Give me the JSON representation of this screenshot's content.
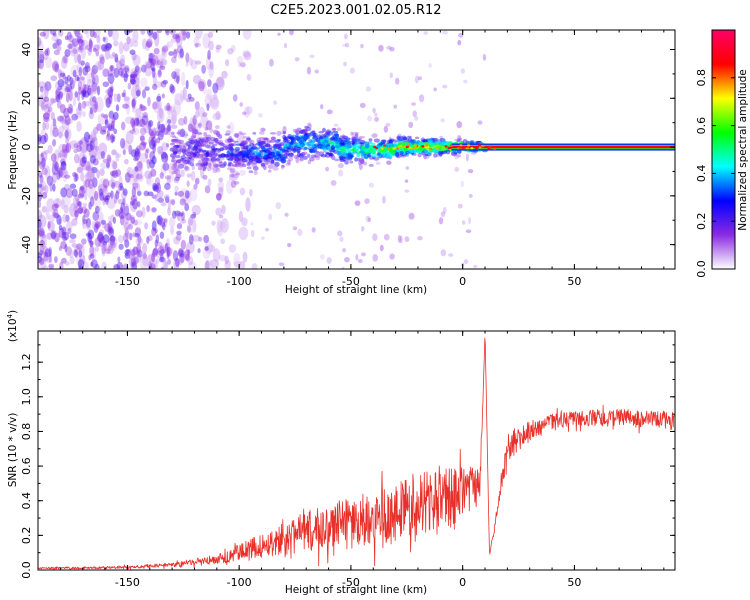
{
  "title": "C2E5.2023.001.02.05.R12",
  "chart_data": [
    {
      "type": "heatmap",
      "name": "spectrogram",
      "xlabel": "Height of straight line (km)",
      "ylabel": "Frequency (Hz)",
      "xlim": [
        -190,
        95
      ],
      "ylim": [
        -50,
        48
      ],
      "xticks": [
        -150,
        -100,
        -50,
        0,
        50
      ],
      "yticks": [
        -40,
        -20,
        0,
        20,
        40
      ],
      "description_regions": {
        "noise_region_x": [
          -190,
          -105
        ],
        "broadened_signal_x": [
          -130,
          10
        ],
        "narrow_line_x": [
          -5,
          95
        ],
        "line_frequency": 0
      },
      "colorbar": {
        "label": "Normalized spectral amplitude",
        "range": [
          0.0,
          1.0
        ],
        "ticks": [
          "0.0",
          "0.2",
          "0.4",
          "0.6",
          "0.8"
        ],
        "colors": [
          "#ffffff",
          "#8a2be2",
          "#0000ff",
          "#00ffff",
          "#00ff00",
          "#ffff00",
          "#ff0000",
          "#ff0066"
        ]
      }
    },
    {
      "type": "line",
      "name": "snr",
      "xlabel": "Height of straight line (km)",
      "ylabel": "SNR (10 * v/v)",
      "yscale_label": "(x10",
      "yscale_exp": "4",
      "yscale_close": ")",
      "xlim": [
        -190,
        95
      ],
      "ylim": [
        0,
        1.38
      ],
      "xticks": [
        -150,
        -100,
        -50,
        0,
        50
      ],
      "yticks": [
        0.0,
        0.2,
        0.4,
        0.6,
        0.8,
        1.0,
        1.2
      ],
      "ytick_labels": [
        "0.0",
        "0.2",
        "0.4",
        "0.6",
        "0.8",
        "1.0",
        "1.2"
      ],
      "color": "#e8302a",
      "envelope": {
        "x": [
          -190,
          -150,
          -130,
          -110,
          -100,
          -90,
          -80,
          -70,
          -60,
          -50,
          -40,
          -30,
          -20,
          -10,
          0,
          8,
          10,
          12,
          20,
          30,
          40,
          50,
          60,
          70,
          80,
          95
        ],
        "y": [
          0.01,
          0.015,
          0.03,
          0.06,
          0.1,
          0.14,
          0.18,
          0.22,
          0.25,
          0.27,
          0.3,
          0.35,
          0.38,
          0.4,
          0.45,
          0.5,
          1.38,
          0.08,
          0.7,
          0.8,
          0.85,
          0.87,
          0.88,
          0.88,
          0.87,
          0.86
        ],
        "amp": [
          0.005,
          0.008,
          0.012,
          0.03,
          0.05,
          0.07,
          0.09,
          0.12,
          0.14,
          0.15,
          0.16,
          0.18,
          0.18,
          0.2,
          0.15,
          0.1,
          0.0,
          0.0,
          0.08,
          0.06,
          0.05,
          0.05,
          0.05,
          0.05,
          0.05,
          0.05
        ]
      }
    }
  ]
}
